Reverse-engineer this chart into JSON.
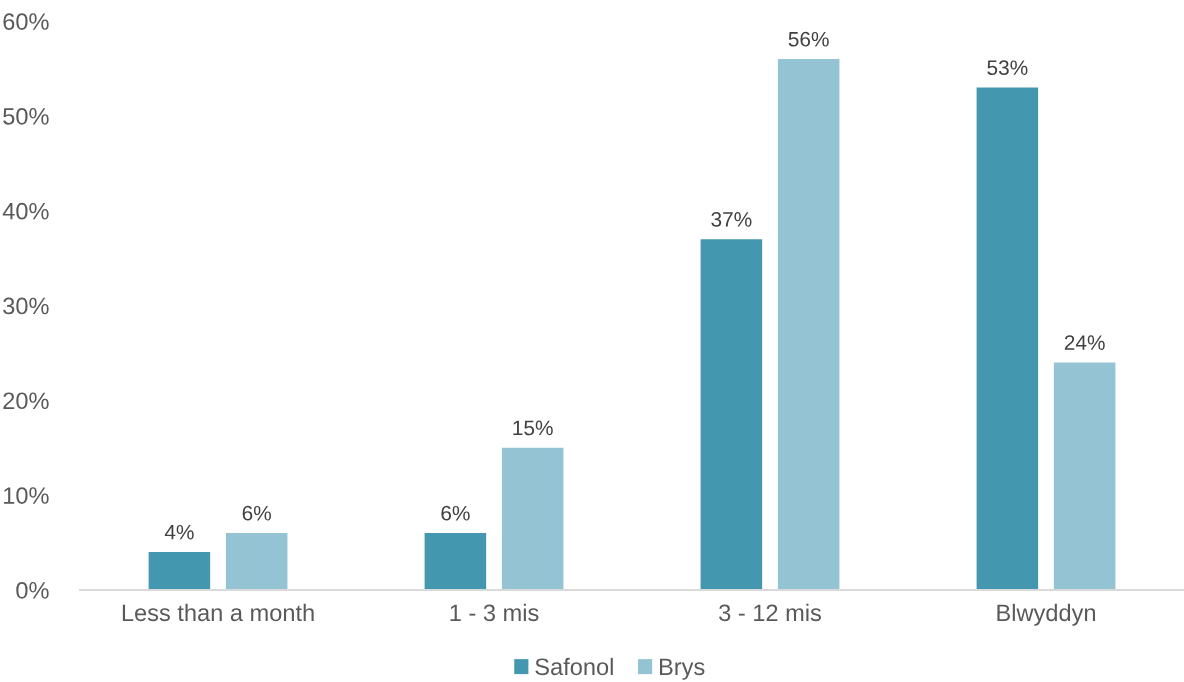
{
  "chart_data": {
    "type": "bar",
    "categories": [
      "Less than a month",
      "1 - 3 mis",
      "3 - 12 mis",
      "Blwyddyn"
    ],
    "series": [
      {
        "name": "Safonol",
        "color": "#4397af",
        "values": [
          4,
          6,
          37,
          53
        ],
        "value_labels": [
          "4%",
          "6%",
          "37%",
          "53%"
        ]
      },
      {
        "name": "Brys",
        "color": "#94c3d4",
        "values": [
          6,
          15,
          56,
          24
        ],
        "value_labels": [
          "6%",
          "15%",
          "56%",
          "24%"
        ]
      }
    ],
    "ylim": [
      0,
      60
    ],
    "yticks": [
      {
        "value": 0,
        "label": "0%"
      },
      {
        "value": 10,
        "label": "10%"
      },
      {
        "value": 20,
        "label": "20%"
      },
      {
        "value": 30,
        "label": "30%"
      },
      {
        "value": 40,
        "label": "40%"
      },
      {
        "value": 50,
        "label": "50%"
      },
      {
        "value": 60,
        "label": "60%"
      }
    ],
    "legend": "bottom"
  }
}
